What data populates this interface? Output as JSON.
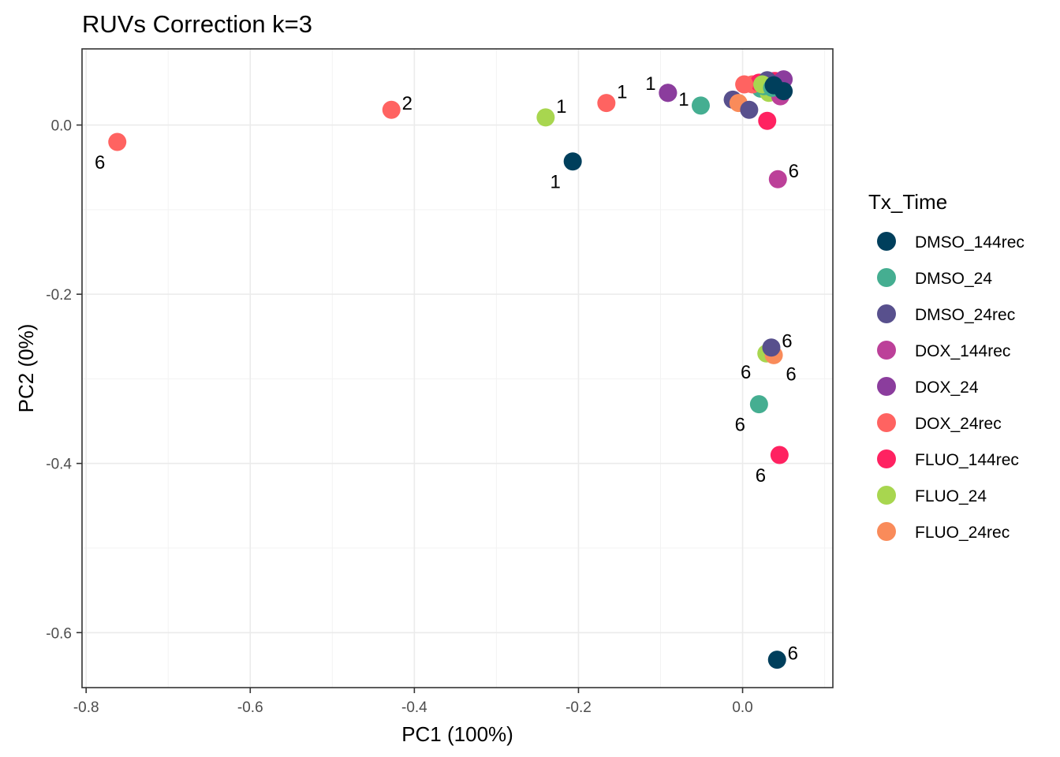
{
  "chart_data": {
    "type": "scatter",
    "title": "RUVs Correction k=3",
    "xlabel": "PC1 (100%)",
    "ylabel": "PC2 (0%)",
    "xlim": [
      -0.805,
      0.11
    ],
    "ylim": [
      -0.665,
      0.09
    ],
    "x_ticks": [
      -0.8,
      -0.6,
      -0.4,
      -0.2,
      0.0
    ],
    "x_tick_labels": [
      "-0.8",
      "-0.6",
      "-0.4",
      "-0.2",
      "0.0"
    ],
    "y_ticks": [
      0.0,
      -0.2,
      -0.4,
      -0.6
    ],
    "y_tick_labels": [
      "0.0",
      "-0.2",
      "-0.4",
      "-0.6"
    ],
    "grid": true,
    "legend": {
      "title": "Tx_Time",
      "position": "right",
      "entries": [
        {
          "name": "DMSO_144rec",
          "color": "#003f5c"
        },
        {
          "name": "DMSO_24",
          "color": "#45ae91"
        },
        {
          "name": "DMSO_24rec",
          "color": "#58508d"
        },
        {
          "name": "DOX_144rec",
          "color": "#bc4099"
        },
        {
          "name": "DOX_24",
          "color": "#8b3d9d"
        },
        {
          "name": "DOX_24rec",
          "color": "#ff6361"
        },
        {
          "name": "FLUO_144rec",
          "color": "#ff2261"
        },
        {
          "name": "FLUO_24",
          "color": "#a8d64f"
        },
        {
          "name": "FLUO_24rec",
          "color": "#f98b5a"
        }
      ]
    },
    "points": [
      {
        "x": 0.022,
        "y": 0.043,
        "group": "DMSO_24",
        "label": ""
      },
      {
        "x": 0.028,
        "y": 0.048,
        "group": "FLUO_24",
        "label": ""
      },
      {
        "x": 0.032,
        "y": 0.038,
        "group": "FLUO_24",
        "label": ""
      },
      {
        "x": 0.038,
        "y": 0.052,
        "group": "DOX_144rec",
        "label": ""
      },
      {
        "x": 0.046,
        "y": 0.034,
        "group": "DOX_144rec",
        "label": ""
      },
      {
        "x": 0.012,
        "y": 0.048,
        "group": "DOX_24rec",
        "label": ""
      },
      {
        "x": 0.02,
        "y": 0.05,
        "group": "FLUO_144rec",
        "label": ""
      },
      {
        "x": 0.026,
        "y": 0.046,
        "group": "DMSO_24",
        "label": ""
      },
      {
        "x": 0.034,
        "y": 0.05,
        "group": "DOX_24",
        "label": ""
      },
      {
        "x": 0.04,
        "y": 0.052,
        "group": "FLUO_144rec",
        "label": ""
      },
      {
        "x": 0.044,
        "y": 0.046,
        "group": "FLUO_144rec",
        "label": ""
      },
      {
        "x": 0.048,
        "y": 0.052,
        "group": "DMSO_24rec",
        "label": ""
      },
      {
        "x": 0.05,
        "y": 0.054,
        "group": "DOX_24",
        "label": ""
      },
      {
        "x": 0.03,
        "y": 0.053,
        "group": "DMSO_24rec",
        "label": ""
      },
      {
        "x": 0.024,
        "y": 0.048,
        "group": "FLUO_24",
        "label": ""
      },
      {
        "x": 0.036,
        "y": 0.044,
        "group": "DMSO_24",
        "label": ""
      },
      {
        "x": -0.012,
        "y": 0.03,
        "group": "DMSO_24rec",
        "label": ""
      },
      {
        "x": 0.002,
        "y": 0.048,
        "group": "DOX_24rec",
        "label": ""
      },
      {
        "x": -0.005,
        "y": 0.026,
        "group": "FLUO_24rec",
        "label": ""
      },
      {
        "x": 0.008,
        "y": 0.018,
        "group": "DMSO_24rec",
        "label": ""
      },
      {
        "x": 0.03,
        "y": 0.005,
        "group": "FLUO_144rec",
        "label": ""
      },
      {
        "x": 0.05,
        "y": 0.04,
        "group": "DMSO_144rec",
        "label": ""
      },
      {
        "x": 0.038,
        "y": 0.047,
        "group": "DMSO_144rec",
        "label": ""
      },
      {
        "x": -0.762,
        "y": -0.02,
        "group": "DOX_24rec",
        "label": "6"
      },
      {
        "x": -0.428,
        "y": 0.018,
        "group": "DOX_24rec",
        "label": "2"
      },
      {
        "x": -0.24,
        "y": 0.009,
        "group": "FLUO_24",
        "label": "1"
      },
      {
        "x": -0.207,
        "y": -0.043,
        "group": "DMSO_144rec",
        "label": "1"
      },
      {
        "x": -0.166,
        "y": 0.026,
        "group": "DOX_24rec",
        "label": "1"
      },
      {
        "x": -0.091,
        "y": 0.038,
        "group": "DOX_24",
        "label": "1"
      },
      {
        "x": -0.091,
        "y": 0.038,
        "group": "DOX_24",
        "label": "1"
      },
      {
        "x": -0.051,
        "y": 0.023,
        "group": "DMSO_24",
        "label": ""
      },
      {
        "x": 0.043,
        "y": -0.064,
        "group": "DOX_144rec",
        "label": "6"
      },
      {
        "x": 0.029,
        "y": -0.27,
        "group": "FLUO_24",
        "label": "6"
      },
      {
        "x": 0.038,
        "y": -0.272,
        "group": "FLUO_24rec",
        "label": "6"
      },
      {
        "x": 0.035,
        "y": -0.263,
        "group": "DMSO_24rec",
        "label": "6"
      },
      {
        "x": 0.02,
        "y": -0.33,
        "group": "DMSO_24",
        "label": "6"
      },
      {
        "x": 0.045,
        "y": -0.39,
        "group": "FLUO_144rec",
        "label": "6"
      },
      {
        "x": 0.042,
        "y": -0.632,
        "group": "DMSO_144rec",
        "label": "6"
      }
    ],
    "label_offsets": [
      {
        "dx": 0,
        "dy": 0
      },
      {
        "dx": 0,
        "dy": 0
      },
      {
        "dx": 0,
        "dy": 0
      },
      {
        "dx": 0,
        "dy": 0
      },
      {
        "dx": 0,
        "dy": 0
      },
      {
        "dx": 0,
        "dy": 0
      },
      {
        "dx": 0,
        "dy": 0
      },
      {
        "dx": 0,
        "dy": 0
      },
      {
        "dx": 0,
        "dy": 0
      },
      {
        "dx": 0,
        "dy": 0
      },
      {
        "dx": 0,
        "dy": 0
      },
      {
        "dx": 0,
        "dy": 0
      },
      {
        "dx": 0,
        "dy": 0
      },
      {
        "dx": 0,
        "dy": 0
      },
      {
        "dx": 0,
        "dy": 0
      },
      {
        "dx": 0,
        "dy": 0
      },
      {
        "dx": 0,
        "dy": 0
      },
      {
        "dx": 0,
        "dy": 0
      },
      {
        "dx": 0,
        "dy": 0
      },
      {
        "dx": 0,
        "dy": 0
      },
      {
        "dx": 0,
        "dy": 0
      },
      {
        "dx": 0,
        "dy": 0
      },
      {
        "dx": 0,
        "dy": 0
      },
      {
        "dx": 0,
        "dy": 0
      },
      {
        "dx": 0,
        "dy": 0
      },
      {
        "dx": 0,
        "dy": 0
      },
      {
        "dx": 0,
        "dy": 0
      },
      {
        "dx": 0,
        "dy": 0
      },
      {
        "dx": 0,
        "dy": 0
      },
      {
        "dx": 0,
        "dy": 0
      },
      {
        "dx": 0,
        "dy": 0
      },
      {
        "dx": 0,
        "dy": 0
      },
      {
        "dx": 0,
        "dy": 0
      },
      {
        "dx": 0,
        "dy": 0
      },
      {
        "dx": 0,
        "dy": 0
      },
      {
        "dx": 0,
        "dy": 0
      },
      {
        "dx": 0,
        "dy": 0
      },
      {
        "dx": 0,
        "dy": 0
      }
    ]
  }
}
